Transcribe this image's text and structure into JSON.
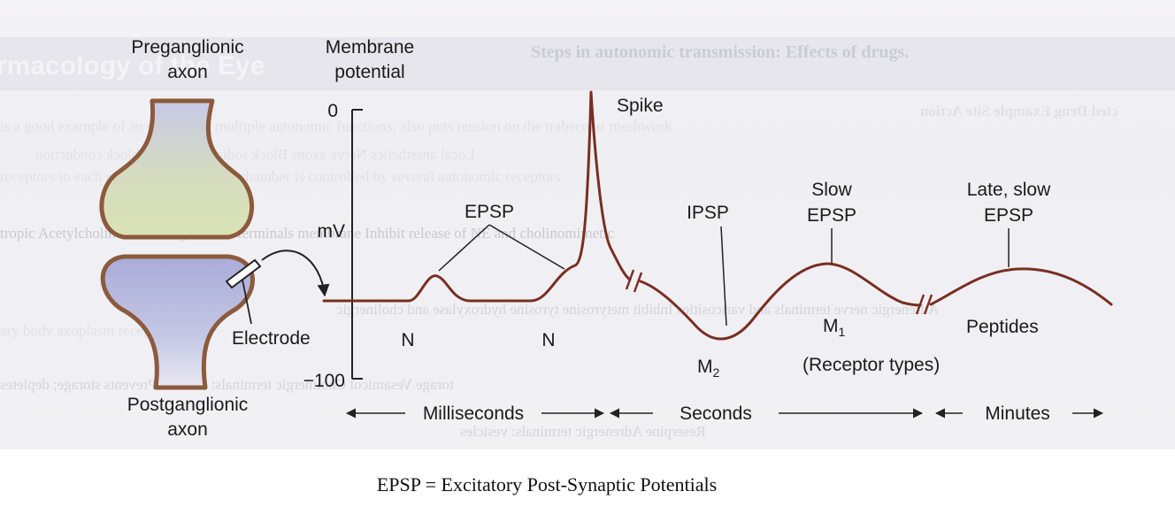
{
  "labels": {
    "preganglionic": [
      "Preganglionic",
      "axon"
    ],
    "membrane": [
      "Membrane",
      "potential"
    ],
    "postganglionic": [
      "Postganglionic",
      "axon"
    ],
    "axis_top": "0",
    "axis_mid": "mV",
    "axis_bottom": "−100",
    "electrode": "Electrode",
    "spike": "Spike",
    "epsp": "EPSP",
    "ipsp": "IPSP",
    "slow_epsp": [
      "Slow",
      "EPSP"
    ],
    "late_slow_epsp": [
      "Late, slow",
      "EPSP"
    ],
    "n_left": "N",
    "n_right": "N",
    "m2": "M",
    "m2_sub": "2",
    "m1": "M",
    "m1_sub": "1",
    "peptides": "Peptides",
    "receptor_types": "(Receptor types)",
    "milliseconds": "Milliseconds",
    "seconds": "Seconds",
    "minutes": "Minutes"
  },
  "bleed_text": [
    "Steps in autonomic transmission: Effects of drugs.",
    "rmacology of the Eye",
    "cted        Drug Example              Site              Action",
    "Local anesthetics     Nerve axons     Block sodium channels; block conduction",
    "is a good example of an organ with multiple autonomic functions; also puts tension on the trabecular meshwork",
    "receptors in each structure; the anterior chamber is controlled by several autonomic receptors",
    "tropic  Acetylcholine  Cholinergic nerve terminals membrane    Inhibit release of NE and cholinomimetic",
    "Adrenergic nerve terminals and varicosities   Inhibit metyrosine tyrosine hydroxylase and cholinergic",
    "ary body                   axoplasm                  receptor types",
    "torage    Vesamicol     Cholinergic terminals: vesicles     Prevents storage; depletes",
    "Reserpine    Adrenergic terminals: vesicles"
  ],
  "caption": "EPSP = Excitatory Post-Synaptic Potentials",
  "colors": {
    "curve": "#7a2e22",
    "axon_outline": "#8c5a3c",
    "pre_fill": "#d8e0b8",
    "post_fill": "#b4b8dc",
    "axis": "#222222"
  }
}
